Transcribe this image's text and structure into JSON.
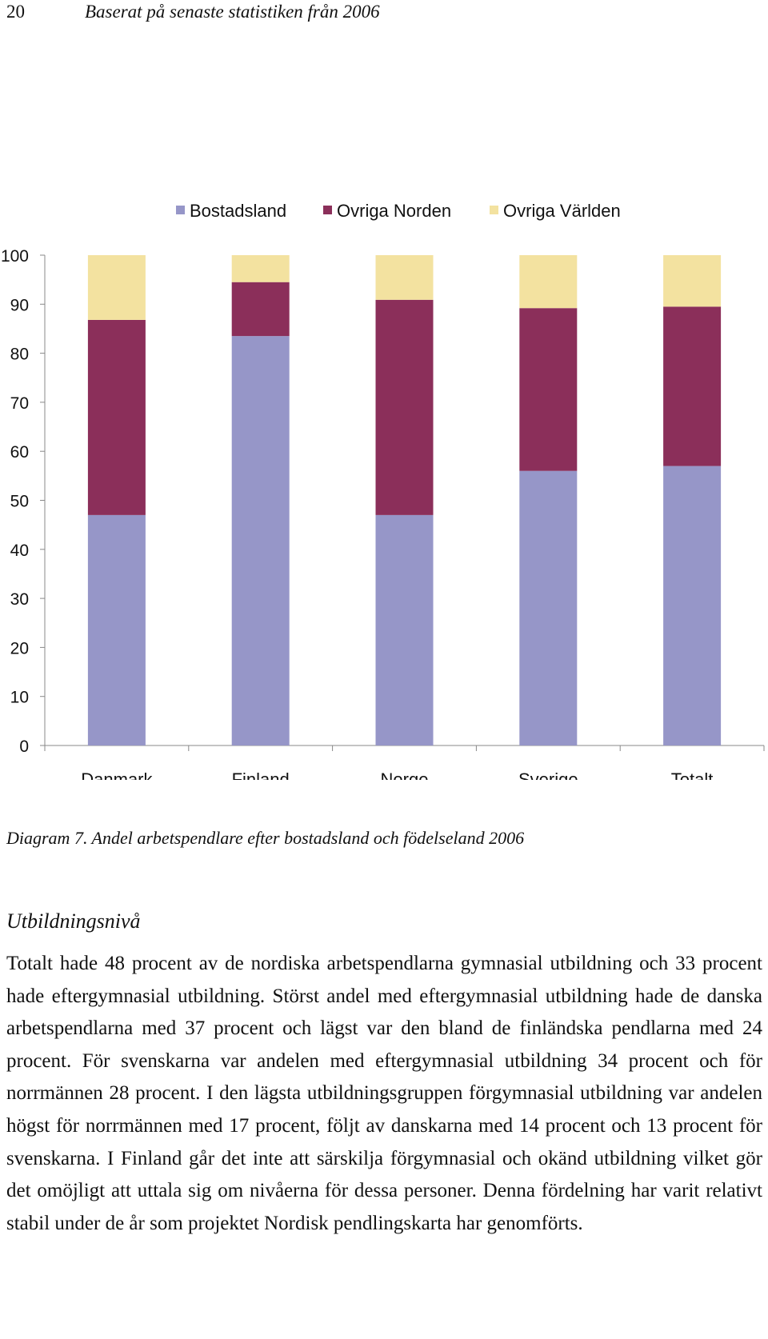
{
  "header": {
    "page_number": "20",
    "running_title": "Baserat på senaste statistiken från 2006"
  },
  "chart_data": {
    "type": "bar",
    "stacked": true,
    "categories": [
      "Danmark",
      "Finland",
      "Norge",
      "Sverige",
      "Totalt"
    ],
    "series": [
      {
        "name": "Bostadsland",
        "color": "#9696c8",
        "values": [
          47,
          83.5,
          47,
          56,
          57
        ]
      },
      {
        "name": "Övriga Norden",
        "color": "#8b2f5a",
        "values": [
          39.8,
          11,
          43.9,
          33.2,
          32.5
        ]
      },
      {
        "name": "Övriga Världen",
        "color": "#f3e2a0",
        "values": [
          13.2,
          5.5,
          9.1,
          10.8,
          10.5
        ]
      }
    ],
    "yticks": [
      "0",
      "10",
      "20",
      "30",
      "40",
      "50",
      "60",
      "70",
      "80",
      "90",
      "100"
    ],
    "ylim": [
      0,
      100
    ],
    "legend_position": "top",
    "grid": false
  },
  "caption": "Diagram 7. Andel arbetspendlare efter bostadsland och födelseland 2006",
  "section_heading": "Utbildningsnivå",
  "paragraph": "Totalt hade 48 procent av de nordiska arbetspendlarna gymnasial utbildning och 33 procent hade eftergymnasial utbildning. Störst andel med eftergymnasial utbildning hade de danska arbetspendlarna med 37 procent och lägst var den bland de finländska pendlarna med 24 procent. För svenskarna var andelen med eftergymnasial utbildning 34 procent och för norrmännen 28 procent. I den lägsta utbildningsgruppen förgymnasial utbildning var andelen högst för norrmännen med 17 procent, följt av danskarna med 14 procent och 13 procent för svenskarna. I Finland går det inte att särskilja förgymnasial och okänd utbildning vilket gör det omöjligt att uttala sig om nivåerna för dessa personer. Denna fördelning har varit relativt stabil under de år som projektet Nordisk pendlingskarta har genomförts."
}
